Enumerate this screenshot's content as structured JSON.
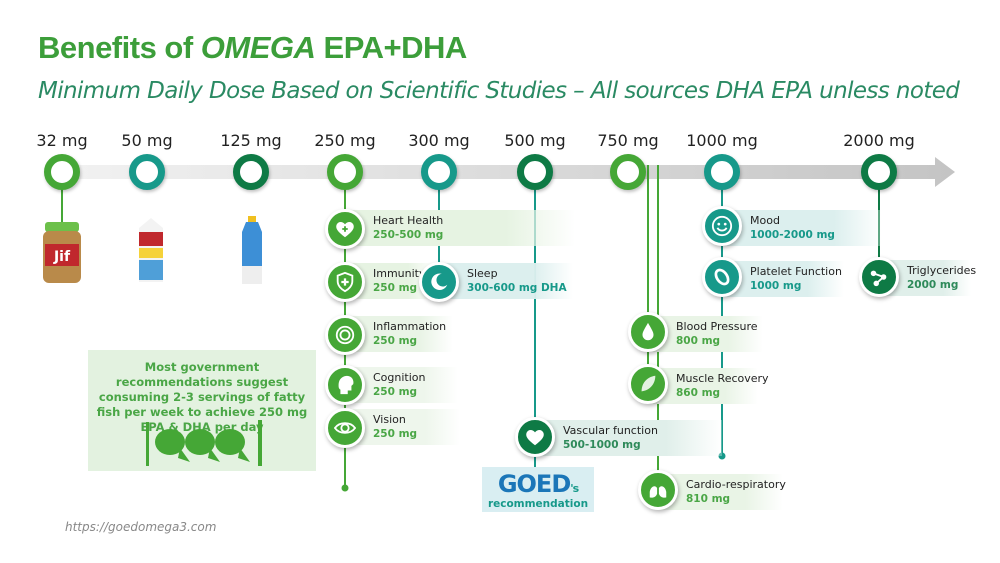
{
  "title": {
    "prefix": "Benefits of ",
    "brand": "OMEGA",
    "suffix": " EPA+DHA"
  },
  "subtitle": "Minimum Daily Dose Based on Scientific Studies – All sources DHA EPA unless noted",
  "colors": {
    "light_green": "#45a736",
    "teal": "#17998a",
    "dark_green": "#0e7a45",
    "title": "#3c9e3a"
  },
  "timeline": [
    {
      "label": "32 mg",
      "color": "light_green"
    },
    {
      "label": "50 mg",
      "color": "teal"
    },
    {
      "label": "125 mg",
      "color": "dark_green"
    },
    {
      "label": "250 mg",
      "color": "light_green"
    },
    {
      "label": "300 mg",
      "color": "teal"
    },
    {
      "label": "500 mg",
      "color": "dark_green"
    },
    {
      "label": "750 mg",
      "color": "light_green"
    },
    {
      "label": "1000 mg",
      "color": "teal"
    },
    {
      "label": "2000 mg",
      "color": "dark_green"
    }
  ],
  "products": [
    {
      "name": "peanut-butter-jar",
      "text": "Jif"
    },
    {
      "name": "milk-carton",
      "text": ""
    },
    {
      "name": "milk-bottle",
      "text": ""
    }
  ],
  "benefits": [
    {
      "title": "Heart Health",
      "dose": "250-500 mg",
      "icon": "heart-plus-icon"
    },
    {
      "title": "Immunity",
      "dose": "250 mg",
      "icon": "shield-plus-icon"
    },
    {
      "title": "Sleep",
      "dose": "300-600 mg DHA",
      "icon": "moon-icon"
    },
    {
      "title": "Inflammation",
      "dose": "250 mg",
      "icon": "rings-icon"
    },
    {
      "title": "Cognition",
      "dose": "250 mg",
      "icon": "brain-head-icon"
    },
    {
      "title": "Vision",
      "dose": "250 mg",
      "icon": "eye-icon"
    },
    {
      "title": "Vascular function",
      "dose": "500-1000 mg",
      "icon": "heart-icon"
    },
    {
      "title": "Blood Pressure",
      "dose": "800 mg",
      "icon": "drop-icon"
    },
    {
      "title": "Muscle Recovery",
      "dose": "860 mg",
      "icon": "leaf-icon"
    },
    {
      "title": "Cardio-respiratory",
      "dose": "810 mg",
      "icon": "lungs-icon"
    },
    {
      "title": "Mood",
      "dose": "1000-2000 mg",
      "icon": "smiley-icon"
    },
    {
      "title": "Platelet Function",
      "dose": "1000 mg",
      "icon": "platelet-icon"
    },
    {
      "title": "Triglycerides",
      "dose": "2000 mg",
      "icon": "molecule-icon"
    }
  ],
  "gov_note": "Most government recommendations suggest consuming 2-3 servings of fatty fish per week to achieve 250 mg EPA & DHA per day",
  "goed": {
    "logo": "GOED",
    "suffix": "'s",
    "caption": "recommendation"
  },
  "footer_url": "https://goedomega3.com"
}
